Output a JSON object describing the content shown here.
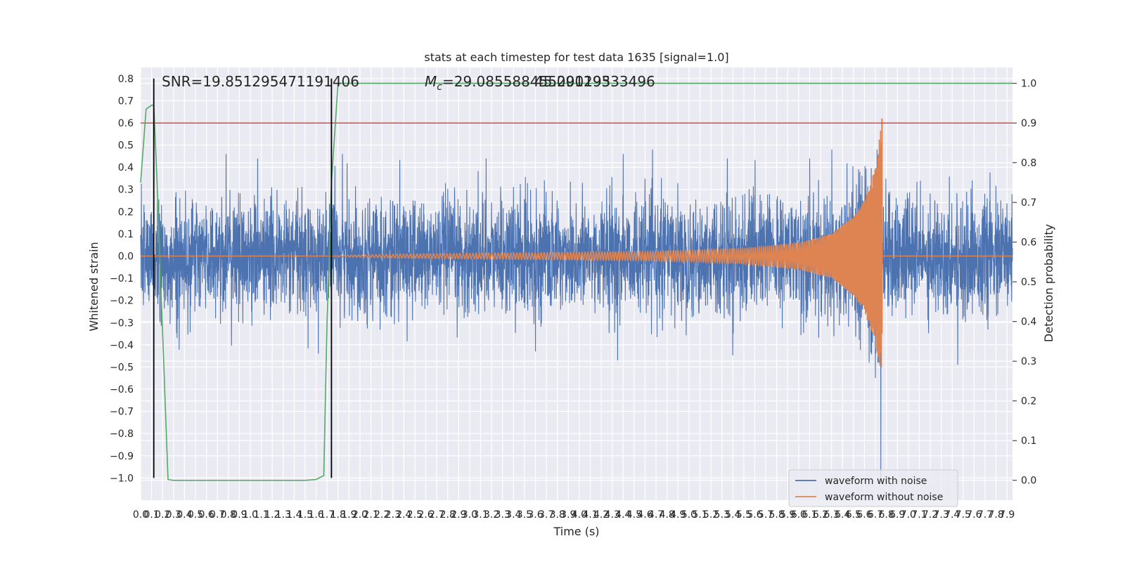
{
  "chart_data": {
    "type": "line",
    "title": "stats at each timestep for test data 1635 [signal=1.0]",
    "xlabel": "Time (s)",
    "ylabel": "Whitened strain",
    "y2label": "Detection probability",
    "xlim": [
      0.0,
      7.95
    ],
    "ylim": [
      -1.1,
      0.85
    ],
    "y2lim": [
      -0.05,
      1.04
    ],
    "xticks": [
      0.0,
      0.1,
      0.2,
      0.3,
      0.4,
      0.5,
      0.6,
      0.7,
      0.8,
      0.9,
      1.0,
      1.1,
      1.2,
      1.3,
      1.4,
      1.5,
      1.6,
      1.7,
      1.8,
      1.9,
      2.0,
      2.1,
      2.2,
      2.3,
      2.4,
      2.5,
      2.6,
      2.7,
      2.8,
      2.9,
      3.0,
      3.1,
      3.2,
      3.3,
      3.4,
      3.5,
      3.6,
      3.7,
      3.8,
      3.9,
      4.0,
      4.1,
      4.2,
      4.3,
      4.4,
      4.5,
      4.6,
      4.7,
      4.8,
      4.9,
      5.0,
      5.1,
      5.2,
      5.3,
      5.4,
      5.5,
      5.6,
      5.7,
      5.8,
      5.9,
      6.0,
      6.1,
      6.2,
      6.3,
      6.4,
      6.5,
      6.6,
      6.7,
      6.8,
      6.9,
      7.0,
      7.1,
      7.2,
      7.3,
      7.4,
      7.5,
      7.6,
      7.7,
      7.8,
      7.9
    ],
    "xtick_labels": [
      "0.0",
      "0.1",
      "0.2",
      "0.3",
      "0.4",
      "0.5",
      "0.6",
      "0.7",
      "0.8",
      "0.9",
      "1.0",
      "1.1",
      "1.2",
      "1.3",
      "1.4",
      "1.5",
      "1.6",
      "1.7",
      "1.8",
      "1.9",
      "2.0",
      "2.1",
      "2.2",
      "2.3",
      "2.4",
      "2.5",
      "2.6",
      "2.7",
      "2.8",
      "2.9",
      "3.0",
      "3.1",
      "3.2",
      "3.3",
      "3.4",
      "3.5",
      "3.6",
      "3.7",
      "3.8",
      "3.9",
      "4.0",
      "4.1",
      "4.2",
      "4.3",
      "4.4",
      "4.5",
      "4.6",
      "4.7",
      "4.8",
      "4.9",
      "5.0",
      "5.1",
      "5.2",
      "5.3",
      "5.4",
      "5.5",
      "5.6",
      "5.7",
      "5.8",
      "5.9",
      "6.0",
      "6.1",
      "6.2",
      "6.3",
      "6.4",
      "6.5",
      "6.6",
      "6.7",
      "6.8",
      "6.9",
      "7.0",
      "7.1",
      "7.2",
      "7.3",
      "7.4",
      "7.5",
      "7.6",
      "7.7",
      "7.8",
      "7.9"
    ],
    "yticks": [
      -1.0,
      -0.9,
      -0.8,
      -0.7,
      -0.6,
      -0.5,
      -0.4,
      -0.3,
      -0.2,
      -0.1,
      0.0,
      0.1,
      0.2,
      0.3,
      0.4,
      0.5,
      0.6,
      0.7,
      0.8
    ],
    "ytick_labels": [
      "−1.0",
      "−0.9",
      "−0.8",
      "−0.7",
      "−0.6",
      "−0.5",
      "−0.4",
      "−0.3",
      "−0.2",
      "−0.1",
      "0.0",
      "0.1",
      "0.2",
      "0.3",
      "0.4",
      "0.5",
      "0.6",
      "0.7",
      "0.8"
    ],
    "y2ticks": [
      0.0,
      0.1,
      0.2,
      0.3,
      0.4,
      0.5,
      0.6,
      0.7,
      0.8,
      0.9,
      1.0
    ],
    "y2tick_labels": [
      "0.0",
      "0.1",
      "0.2",
      "0.3",
      "0.4",
      "0.5",
      "0.6",
      "0.7",
      "0.8",
      "0.9",
      "1.0"
    ],
    "grid": true,
    "background": "#eaeaf2",
    "legend_position": "lower-right",
    "annotations": [
      {
        "text": "SNR=19.851295471191406",
        "x": 0.2,
        "y": 0.82
      },
      {
        "text": "Mc=29.085588455200195",
        "x": 2.6,
        "y": 0.82
      },
      {
        "text": "45.09129333496",
        "x": 3.6,
        "y": 0.82
      }
    ],
    "vlines": [
      {
        "x": 0.12,
        "ymin": -1.0,
        "ymax": 0.8,
        "color": "#000000"
      },
      {
        "x": 1.74,
        "ymin": -1.0,
        "ymax": 0.8,
        "color": "#000000"
      }
    ],
    "hline_y2": {
      "y": 0.9,
      "color": "#c44e52"
    },
    "series": [
      {
        "name": "waveform with noise",
        "color": "#4c72b0",
        "description": "noisy strain, amplitude ~0.25 with spikes to ~0.45; spike to -1.0 near t=6.75",
        "typical_amplitude": 0.25,
        "spike_points": [
          {
            "x": 0.78,
            "y": 0.46
          },
          {
            "x": 1.84,
            "y": 0.46
          },
          {
            "x": 3.15,
            "y": 0.44
          },
          {
            "x": 4.4,
            "y": 0.46
          },
          {
            "x": 5.35,
            "y": 0.44
          },
          {
            "x": 6.1,
            "y": 0.44
          },
          {
            "x": 1.62,
            "y": -0.44
          },
          {
            "x": 3.6,
            "y": -0.43
          },
          {
            "x": 4.35,
            "y": -0.47
          },
          {
            "x": 6.7,
            "y": -0.55
          },
          {
            "x": 6.75,
            "y": -1.0
          },
          {
            "x": 7.45,
            "y": -0.49
          }
        ]
      },
      {
        "name": "waveform without noise",
        "color": "#dd8452",
        "description": "chirp signal, near zero until ~2.0 s, grows to peak ~0.62 at 6.76 s then ringdown",
        "merger_time": 6.76,
        "peak_amplitude": 0.62,
        "envelope": [
          [
            1.8,
            0.003
          ],
          [
            2.5,
            0.01
          ],
          [
            3.5,
            0.015
          ],
          [
            4.5,
            0.02
          ],
          [
            5.0,
            0.025
          ],
          [
            5.5,
            0.035
          ],
          [
            6.0,
            0.06
          ],
          [
            6.3,
            0.1
          ],
          [
            6.5,
            0.18
          ],
          [
            6.6,
            0.25
          ],
          [
            6.7,
            0.4
          ],
          [
            6.76,
            0.62
          ]
        ]
      },
      {
        "name": "detection probability",
        "color": "#55a868",
        "axis": "y2",
        "x": [
          0.0,
          0.05,
          0.1,
          0.12,
          0.15,
          0.25,
          0.3,
          0.5,
          1.0,
          1.5,
          1.6,
          1.67,
          1.7,
          1.74,
          1.8,
          2.0,
          7.95
        ],
        "values": [
          0.75,
          0.935,
          0.945,
          0.945,
          0.75,
          0.002,
          0.0,
          0.0,
          0.0,
          0.0,
          0.002,
          0.012,
          0.4,
          0.75,
          1.0,
          1.0,
          1.0
        ]
      }
    ]
  }
}
